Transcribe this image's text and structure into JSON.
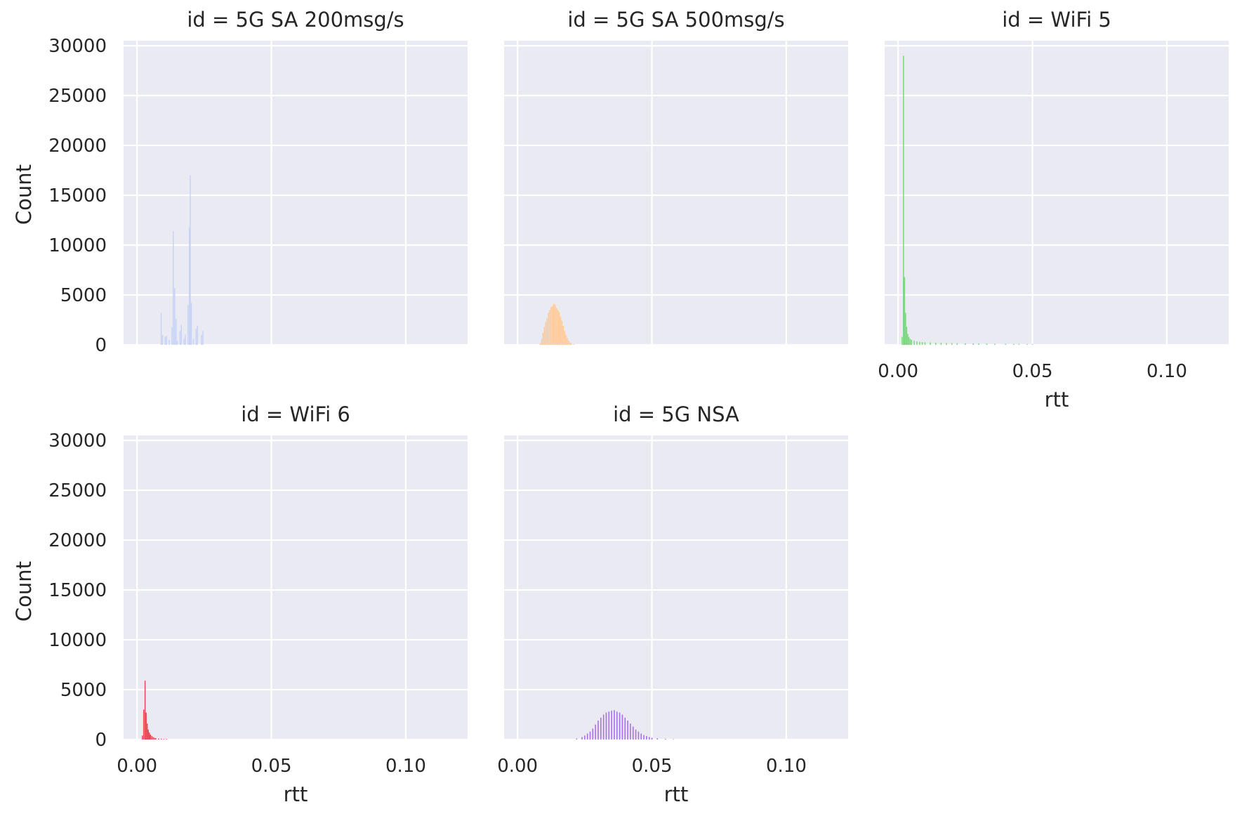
{
  "figure": {
    "ylabel": "Count",
    "xlabel": "rtt"
  },
  "chart_data": [
    {
      "type": "bar",
      "title": "id = 5G SA 200msg/s",
      "xlabel": "",
      "ylabel": "Count",
      "xlim": [
        -0.005,
        0.123
      ],
      "ylim": [
        0,
        30500
      ],
      "xticks": [
        0.0,
        0.05,
        0.1
      ],
      "xticklabels": [],
      "yticks": [
        0,
        5000,
        10000,
        15000,
        20000,
        25000,
        30000
      ],
      "yticklabels": [
        "0",
        "5000",
        "10000",
        "15000",
        "20000",
        "25000",
        "30000"
      ],
      "color": "#c7d3f6",
      "show_yticklabels": true,
      "bin_width": 0.0004,
      "bins": [
        [
          0.009,
          3200
        ],
        [
          0.0095,
          1000
        ],
        [
          0.0105,
          800
        ],
        [
          0.011,
          900
        ],
        [
          0.012,
          500
        ],
        [
          0.013,
          1800
        ],
        [
          0.0135,
          11400
        ],
        [
          0.014,
          5700
        ],
        [
          0.0145,
          2600
        ],
        [
          0.015,
          400
        ],
        [
          0.016,
          1400
        ],
        [
          0.0165,
          2000
        ],
        [
          0.0175,
          600
        ],
        [
          0.018,
          1000
        ],
        [
          0.019,
          4000
        ],
        [
          0.0195,
          11800
        ],
        [
          0.0198,
          17000
        ],
        [
          0.0202,
          4200
        ],
        [
          0.021,
          600
        ],
        [
          0.022,
          1600
        ],
        [
          0.0225,
          1900
        ],
        [
          0.024,
          1000
        ],
        [
          0.0245,
          1400
        ]
      ]
    },
    {
      "type": "bar",
      "title": "id = 5G SA 500msg/s",
      "xlabel": "",
      "ylabel": "",
      "xlim": [
        -0.005,
        0.123
      ],
      "ylim": [
        0,
        30500
      ],
      "xticks": [
        0.0,
        0.05,
        0.1
      ],
      "xticklabels": [],
      "yticks": [
        0,
        5000,
        10000,
        15000,
        20000,
        25000,
        30000
      ],
      "yticklabels": [],
      "color": "#fbc99a",
      "show_yticklabels": false,
      "bin_width": 0.0004,
      "bins": [
        [
          0.0085,
          200
        ],
        [
          0.009,
          600
        ],
        [
          0.0095,
          1200
        ],
        [
          0.01,
          1800
        ],
        [
          0.0105,
          2300
        ],
        [
          0.011,
          2700
        ],
        [
          0.0115,
          3200
        ],
        [
          0.012,
          3500
        ],
        [
          0.0125,
          3800
        ],
        [
          0.013,
          3900
        ],
        [
          0.0135,
          4100
        ],
        [
          0.014,
          4000
        ],
        [
          0.0145,
          3700
        ],
        [
          0.015,
          3500
        ],
        [
          0.0155,
          3300
        ],
        [
          0.016,
          2800
        ],
        [
          0.0165,
          2400
        ],
        [
          0.017,
          1900
        ],
        [
          0.0175,
          1400
        ],
        [
          0.018,
          1000
        ],
        [
          0.0185,
          700
        ],
        [
          0.019,
          400
        ],
        [
          0.0195,
          250
        ],
        [
          0.02,
          150
        ],
        [
          0.021,
          80
        ]
      ]
    },
    {
      "type": "bar",
      "title": "id = WiFi 5",
      "xlabel": "rtt",
      "ylabel": "",
      "xlim": [
        -0.005,
        0.123
      ],
      "ylim": [
        0,
        30500
      ],
      "xticks": [
        0.0,
        0.05,
        0.1
      ],
      "xticklabels": [
        "0.00",
        "0.05",
        "0.10"
      ],
      "yticks": [
        0,
        5000,
        10000,
        15000,
        20000,
        25000,
        30000
      ],
      "yticklabels": [],
      "color": "#7dd67f",
      "show_yticklabels": true,
      "hide_ytick_text": true,
      "bin_width": 0.0004,
      "bins": [
        [
          0.0015,
          800
        ],
        [
          0.002,
          29000
        ],
        [
          0.0024,
          6800
        ],
        [
          0.0028,
          3200
        ],
        [
          0.0032,
          1800
        ],
        [
          0.0036,
          1100
        ],
        [
          0.004,
          800
        ],
        [
          0.0045,
          600
        ],
        [
          0.005,
          500
        ],
        [
          0.006,
          400
        ],
        [
          0.007,
          350
        ],
        [
          0.008,
          300
        ],
        [
          0.009,
          280
        ],
        [
          0.01,
          260
        ],
        [
          0.012,
          240
        ],
        [
          0.014,
          220
        ],
        [
          0.016,
          200
        ],
        [
          0.018,
          180
        ],
        [
          0.02,
          170
        ],
        [
          0.022,
          160
        ],
        [
          0.025,
          150
        ],
        [
          0.028,
          140
        ],
        [
          0.03,
          130
        ],
        [
          0.033,
          120
        ],
        [
          0.036,
          110
        ],
        [
          0.04,
          100
        ],
        [
          0.043,
          90
        ],
        [
          0.045,
          85
        ],
        [
          0.048,
          80
        ],
        [
          0.05,
          70
        ]
      ]
    },
    {
      "type": "bar",
      "title": "id = WiFi 6",
      "xlabel": "rtt",
      "ylabel": "Count",
      "xlim": [
        -0.005,
        0.123
      ],
      "ylim": [
        0,
        30500
      ],
      "xticks": [
        0.0,
        0.05,
        0.1
      ],
      "xticklabels": [
        "0.00",
        "0.05",
        "0.10"
      ],
      "yticks": [
        0,
        5000,
        10000,
        15000,
        20000,
        25000,
        30000
      ],
      "yticklabels": [
        "0",
        "5000",
        "10000",
        "15000",
        "20000",
        "25000",
        "30000"
      ],
      "color": "#e64a57",
      "show_yticklabels": true,
      "bin_width": 0.0004,
      "bins": [
        [
          0.002,
          400
        ],
        [
          0.0025,
          3000
        ],
        [
          0.003,
          5900
        ],
        [
          0.0034,
          2700
        ],
        [
          0.0038,
          1600
        ],
        [
          0.0042,
          1000
        ],
        [
          0.0046,
          700
        ],
        [
          0.005,
          500
        ],
        [
          0.0055,
          350
        ],
        [
          0.006,
          250
        ],
        [
          0.0065,
          180
        ],
        [
          0.007,
          140
        ],
        [
          0.008,
          100
        ],
        [
          0.009,
          80
        ],
        [
          0.01,
          60
        ],
        [
          0.011,
          50
        ]
      ]
    },
    {
      "type": "bar",
      "title": "id = 5G NSA",
      "xlabel": "rtt",
      "ylabel": "",
      "xlim": [
        -0.005,
        0.123
      ],
      "ylim": [
        0,
        30500
      ],
      "xticks": [
        0.0,
        0.05,
        0.1
      ],
      "xticklabels": [
        "0.00",
        "0.05",
        "0.10"
      ],
      "yticks": [
        0,
        5000,
        10000,
        15000,
        20000,
        25000,
        30000
      ],
      "yticklabels": [],
      "color": "#a66de6",
      "show_yticklabels": false,
      "bin_width": 0.0004,
      "bins": [
        [
          0.022,
          100
        ],
        [
          0.024,
          250
        ],
        [
          0.025,
          400
        ],
        [
          0.026,
          600
        ],
        [
          0.027,
          800
        ],
        [
          0.028,
          1100
        ],
        [
          0.029,
          1500
        ],
        [
          0.03,
          1900
        ],
        [
          0.031,
          2200
        ],
        [
          0.032,
          2500
        ],
        [
          0.033,
          2700
        ],
        [
          0.034,
          2800
        ],
        [
          0.035,
          2900
        ],
        [
          0.036,
          2950
        ],
        [
          0.037,
          2800
        ],
        [
          0.038,
          2700
        ],
        [
          0.039,
          2500
        ],
        [
          0.04,
          2200
        ],
        [
          0.041,
          1900
        ],
        [
          0.042,
          1600
        ],
        [
          0.043,
          1300
        ],
        [
          0.044,
          1000
        ],
        [
          0.045,
          800
        ],
        [
          0.046,
          600
        ],
        [
          0.047,
          450
        ],
        [
          0.048,
          350
        ],
        [
          0.049,
          250
        ],
        [
          0.05,
          180
        ],
        [
          0.052,
          120
        ],
        [
          0.055,
          70
        ],
        [
          0.058,
          40
        ]
      ]
    }
  ]
}
